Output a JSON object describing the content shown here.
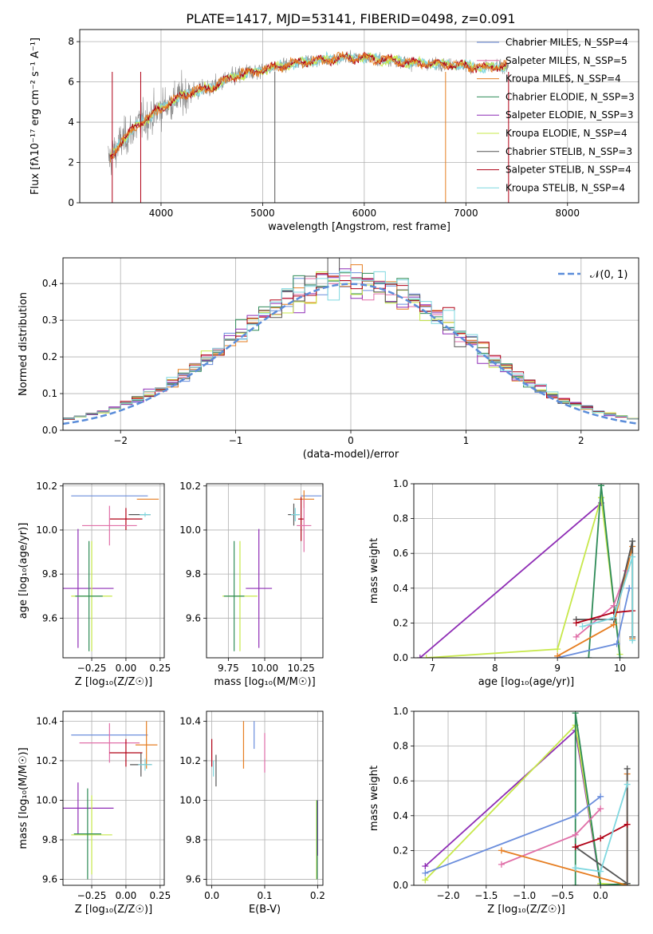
{
  "figure": {
    "title": "PLATE=1417, MJD=53141, FIBERID=0498, z=0.091"
  },
  "colors": {
    "chabrier_miles": "#6a8ddc",
    "salpeter_miles": "#e06fa8",
    "kroupa_miles": "#e67e22",
    "chabrier_elodie": "#2e8b57",
    "salpeter_elodie": "#8e2cb5",
    "kroupa_elodie": "#c7e84a",
    "chabrier_stelib": "#555555",
    "salpeter_stelib": "#b00015",
    "kroupa_stelib": "#7fd8e0",
    "data": "#888888",
    "normal": "#5b8dd9"
  },
  "chart_data": [
    {
      "id": "spectrum",
      "type": "line",
      "xlabel": "wavelength [Angstrom, rest frame]",
      "ylabel": "Flux [fλ10⁻¹⁷ erg cm⁻² s⁻¹ A⁻¹]",
      "xlim": [
        3200,
        8700
      ],
      "ylim": [
        0,
        8.6
      ],
      "xticks": [
        4000,
        5000,
        6000,
        7000,
        8000
      ],
      "yticks": [
        0,
        2,
        4,
        6,
        8
      ],
      "legend_position": "right",
      "continuum": {
        "x": [
          3500,
          3600,
          3700,
          3800,
          3900,
          4000,
          4100,
          4200,
          4300,
          4400,
          4500,
          4600,
          4800,
          5000,
          5200,
          5400,
          5600,
          5800,
          6000,
          6200,
          6400,
          6600,
          6800,
          7000,
          7200,
          7400
        ],
        "y": [
          2.2,
          3.0,
          3.5,
          4.0,
          4.3,
          4.7,
          5.0,
          5.3,
          5.5,
          5.6,
          5.7,
          6.0,
          6.4,
          6.6,
          6.8,
          7.0,
          7.1,
          7.2,
          7.2,
          7.1,
          7.0,
          6.9,
          6.9,
          6.8,
          6.7,
          6.8
        ]
      },
      "legend": [
        {
          "label": "Chabrier MILES, N_SSP=4",
          "color": "#6a8ddc"
        },
        {
          "label": "Salpeter MILES, N_SSP=5",
          "color": "#e06fa8"
        },
        {
          "label": "Kroupa MILES, N_SSP=4",
          "color": "#e67e22"
        },
        {
          "label": "Chabrier ELODIE, N_SSP=3",
          "color": "#2e8b57"
        },
        {
          "label": "Salpeter ELODIE, N_SSP=3",
          "color": "#8e2cb5"
        },
        {
          "label": "Kroupa ELODIE, N_SSP=4",
          "color": "#c7e84a"
        },
        {
          "label": "Chabrier STELIB, N_SSP=3",
          "color": "#555555"
        },
        {
          "label": "Salpeter STELIB, N_SSP=4",
          "color": "#b00015"
        },
        {
          "label": "Kroupa STELIB, N_SSP=4",
          "color": "#7fd8e0"
        }
      ]
    },
    {
      "id": "residuals",
      "type": "step",
      "xlabel": "(data-model)/error",
      "ylabel": "Normed distribution",
      "xlim": [
        -2.5,
        2.5
      ],
      "ylim": [
        0,
        0.47
      ],
      "xticks": [
        -2,
        -1,
        0,
        1,
        2
      ],
      "yticks": [
        0.0,
        0.1,
        0.2,
        0.3,
        0.4
      ],
      "grid": true,
      "legend": {
        "label": "𝒩(0, 1)",
        "position": "top-right"
      },
      "bins": {
        "start": -2.5,
        "width": 0.1,
        "count": 50
      }
    },
    {
      "id": "age_Z",
      "type": "errorbar",
      "xlabel": "Z [log₁₀(Z/Z☉)]",
      "ylabel": "age  [log₁₀(age/yr)]",
      "xlim": [
        -0.46,
        0.28
      ],
      "ylim": [
        9.42,
        10.21
      ],
      "xticks": [
        -0.25,
        0.0,
        0.25
      ],
      "yticks": [
        9.6,
        9.8,
        10.0,
        10.2
      ],
      "points": [
        {
          "m": "chabrier_miles",
          "x": -0.12,
          "y": 10.155,
          "xerr": 0.28,
          "yerr": 0.0
        },
        {
          "m": "kroupa_miles",
          "x": 0.16,
          "y": 10.14,
          "xerr": 0.08,
          "yerr": 0.0
        },
        {
          "m": "chabrier_stelib",
          "x": 0.1,
          "y": 10.07,
          "xerr": 0.08,
          "yerr": 0.0
        },
        {
          "m": "kroupa_stelib",
          "x": 0.14,
          "y": 10.07,
          "xerr": 0.04,
          "yerr": 0.01
        },
        {
          "m": "salpeter_stelib",
          "x": 0.0,
          "y": 10.05,
          "xerr": 0.12,
          "yerr": 0.05
        },
        {
          "m": "salpeter_miles",
          "x": -0.12,
          "y": 10.02,
          "xerr": 0.2,
          "yerr": 0.09
        },
        {
          "m": "salpeter_elodie",
          "x": -0.35,
          "y": 9.735,
          "xerr": 0.26,
          "yerr": 0.27
        },
        {
          "m": "kroupa_elodie",
          "x": -0.25,
          "y": 9.7,
          "xerr": 0.15,
          "yerr": 0.25
        },
        {
          "m": "chabrier_elodie",
          "x": -0.27,
          "y": 9.7,
          "xerr": 0.1,
          "yerr": 0.25
        }
      ]
    },
    {
      "id": "age_mass",
      "type": "errorbar",
      "xlabel": "mass [log₁₀(M/M☉)]",
      "ylabel": "",
      "xlim": [
        9.6,
        10.4
      ],
      "ylim": [
        9.42,
        10.21
      ],
      "xticks": [
        9.75,
        10.0,
        10.25
      ],
      "yticks": [
        9.6,
        9.8,
        10.0,
        10.2
      ],
      "points": [
        {
          "m": "chabrier_miles",
          "x": 10.32,
          "y": 10.155,
          "xerr": 0.07,
          "yerr": 0.0
        },
        {
          "m": "kroupa_miles",
          "x": 10.27,
          "y": 10.14,
          "xerr": 0.07,
          "yerr": 0.04
        },
        {
          "m": "chabrier_stelib",
          "x": 10.2,
          "y": 10.07,
          "xerr": 0.04,
          "yerr": 0.05
        },
        {
          "m": "kroupa_stelib",
          "x": 10.21,
          "y": 10.07,
          "xerr": 0.03,
          "yerr": 0.03
        },
        {
          "m": "salpeter_stelib",
          "x": 10.25,
          "y": 10.05,
          "xerr": 0.02,
          "yerr": 0.1
        },
        {
          "m": "salpeter_miles",
          "x": 10.27,
          "y": 10.02,
          "xerr": 0.05,
          "yerr": 0.12
        },
        {
          "m": "salpeter_elodie",
          "x": 9.96,
          "y": 9.735,
          "xerr": 0.09,
          "yerr": 0.27
        },
        {
          "m": "kroupa_elodie",
          "x": 9.83,
          "y": 9.7,
          "xerr": 0.12,
          "yerr": 0.25
        },
        {
          "m": "chabrier_elodie",
          "x": 9.79,
          "y": 9.7,
          "xerr": 0.07,
          "yerr": 0.25
        }
      ]
    },
    {
      "id": "weight_age",
      "type": "line",
      "xlabel": "age  [log₁₀(age/yr)]",
      "ylabel": "mass weight",
      "xlim": [
        6.7,
        10.3
      ],
      "ylim": [
        0,
        1.0
      ],
      "xticks": [
        7,
        8,
        9,
        10
      ],
      "yticks": [
        0.0,
        0.2,
        0.4,
        0.6,
        0.8,
        1.0
      ],
      "grid": true,
      "series": [
        {
          "m": "salpeter_elodie",
          "x": [
            6.8,
            9.7
          ],
          "y": [
            0.0,
            0.89
          ]
        },
        {
          "m": "kroupa_elodie",
          "x": [
            6.9,
            9.0,
            9.7,
            10.0,
            9.7
          ],
          "y": [
            0.0,
            0.05,
            0.92,
            0.02,
            0.92
          ]
        },
        {
          "m": "chabrier_elodie",
          "x": [
            9.5,
            9.7,
            10.0,
            9.7
          ],
          "y": [
            0.0,
            0.99,
            0.0,
            0.99
          ]
        },
        {
          "m": "chabrier_miles",
          "x": [
            9.0,
            9.95,
            10.15
          ],
          "y": [
            0.0,
            0.08,
            0.4
          ]
        },
        {
          "m": "kroupa_miles",
          "x": [
            9.0,
            9.9,
            10.2,
            10.2
          ],
          "y": [
            0.01,
            0.19,
            0.64,
            0.11
          ]
        },
        {
          "m": "salpeter_miles",
          "x": [
            9.3,
            9.9,
            10.1
          ],
          "y": [
            0.12,
            0.3,
            0.5
          ]
        },
        {
          "m": "chabrier_stelib",
          "x": [
            9.3,
            9.9,
            10.2,
            10.2
          ],
          "y": [
            0.22,
            0.22,
            0.67,
            0.12
          ]
        },
        {
          "m": "salpeter_stelib",
          "x": [
            9.3,
            9.9,
            10.2
          ],
          "y": [
            0.2,
            0.26,
            0.27
          ]
        },
        {
          "m": "kroupa_stelib",
          "x": [
            9.4,
            9.9,
            10.2,
            10.2
          ],
          "y": [
            0.18,
            0.23,
            0.58,
            0.1
          ]
        }
      ]
    },
    {
      "id": "mass_Z",
      "type": "errorbar",
      "xlabel": "Z [log₁₀(Z/Z☉)]",
      "ylabel": "mass [log₁₀(M/M☉)]",
      "xlim": [
        -0.46,
        0.28
      ],
      "ylim": [
        9.57,
        10.45
      ],
      "xticks": [
        -0.25,
        0.0,
        0.25
      ],
      "yticks": [
        9.6,
        9.8,
        10.0,
        10.2,
        10.4
      ],
      "points": [
        {
          "m": "chabrier_miles",
          "x": -0.12,
          "y": 10.33,
          "xerr": 0.28,
          "yerr": 0.0
        },
        {
          "m": "kroupa_miles",
          "x": 0.15,
          "y": 10.28,
          "xerr": 0.08,
          "yerr": 0.12
        },
        {
          "m": "salpeter_miles",
          "x": -0.12,
          "y": 10.29,
          "xerr": 0.22,
          "yerr": 0.1
        },
        {
          "m": "salpeter_stelib",
          "x": 0.0,
          "y": 10.24,
          "xerr": 0.12,
          "yerr": 0.07
        },
        {
          "m": "chabrier_stelib",
          "x": 0.11,
          "y": 10.18,
          "xerr": 0.08,
          "yerr": 0.06
        },
        {
          "m": "kroupa_stelib",
          "x": 0.14,
          "y": 10.18,
          "xerr": 0.05,
          "yerr": 0.03
        },
        {
          "m": "salpeter_elodie",
          "x": -0.35,
          "y": 9.96,
          "xerr": 0.26,
          "yerr": 0.13
        },
        {
          "m": "kroupa_elodie",
          "x": -0.25,
          "y": 9.825,
          "xerr": 0.15,
          "yerr": 0.2
        },
        {
          "m": "chabrier_elodie",
          "x": -0.28,
          "y": 9.83,
          "xerr": 0.1,
          "yerr": 0.23
        }
      ]
    },
    {
      "id": "mass_ebv",
      "type": "errorbar",
      "xlabel": "E(B-V)",
      "ylabel": "",
      "xlim": [
        -0.01,
        0.21
      ],
      "ylim": [
        9.57,
        10.45
      ],
      "xticks": [
        0.0,
        0.1,
        0.2
      ],
      "yticks": [
        9.6,
        9.8,
        10.0,
        10.2,
        10.4
      ],
      "points": [
        {
          "m": "salpeter_stelib",
          "x": 0.0,
          "y": 10.24,
          "xerr": 0.0,
          "yerr": 0.07
        },
        {
          "m": "kroupa_stelib",
          "x": 0.003,
          "y": 10.16,
          "xerr": 0.0,
          "yerr": 0.04
        },
        {
          "m": "chabrier_stelib",
          "x": 0.008,
          "y": 10.15,
          "xerr": 0.0,
          "yerr": 0.08
        },
        {
          "m": "kroupa_miles",
          "x": 0.06,
          "y": 10.28,
          "xerr": 0.0,
          "yerr": 0.12
        },
        {
          "m": "chabrier_miles",
          "x": 0.08,
          "y": 10.33,
          "xerr": 0.0,
          "yerr": 0.07
        },
        {
          "m": "salpeter_miles",
          "x": 0.1,
          "y": 10.24,
          "xerr": 0.0,
          "yerr": 0.1
        },
        {
          "m": "salpeter_elodie",
          "x": 0.2,
          "y": 9.86,
          "xerr": 0.0,
          "yerr": 0.14
        },
        {
          "m": "kroupa_elodie",
          "x": 0.198,
          "y": 9.8,
          "xerr": 0.0,
          "yerr": 0.2
        },
        {
          "m": "chabrier_elodie",
          "x": 0.199,
          "y": 9.8,
          "xerr": 0.0,
          "yerr": 0.2
        }
      ]
    },
    {
      "id": "weight_Z",
      "type": "line",
      "xlabel": "Z [log₁₀(Z/Z☉)]",
      "ylabel": "mass weight",
      "xlim": [
        -2.45,
        0.5
      ],
      "ylim": [
        0,
        1.0
      ],
      "xticks": [
        -2.0,
        -1.5,
        -1.0,
        -0.5,
        0.0
      ],
      "yticks": [
        0.0,
        0.2,
        0.4,
        0.6,
        0.8,
        1.0
      ],
      "grid": true,
      "series": [
        {
          "m": "salpeter_elodie",
          "x": [
            -2.3,
            -0.33,
            0.0
          ],
          "y": [
            0.11,
            0.89,
            0.0
          ]
        },
        {
          "m": "kroupa_elodie",
          "x": [
            -2.3,
            -0.33,
            0.0,
            0.35
          ],
          "y": [
            0.03,
            0.92,
            0.01,
            0.0
          ]
        },
        {
          "m": "chabrier_elodie",
          "x": [
            -0.33,
            -0.33,
            0.0,
            0.35
          ],
          "y": [
            0.0,
            0.99,
            0.0,
            0.01
          ]
        },
        {
          "m": "chabrier_miles",
          "x": [
            -2.3,
            -0.33,
            0.0
          ],
          "y": [
            0.07,
            0.4,
            0.51
          ]
        },
        {
          "m": "salpeter_miles",
          "x": [
            -1.3,
            -0.33,
            0.0
          ],
          "y": [
            0.12,
            0.29,
            0.44
          ]
        },
        {
          "m": "kroupa_miles",
          "x": [
            -1.3,
            0.35,
            0.35
          ],
          "y": [
            0.2,
            0.0,
            0.64
          ]
        },
        {
          "m": "chabrier_stelib",
          "x": [
            -0.33,
            0.35,
            0.35
          ],
          "y": [
            0.22,
            0.01,
            0.67
          ]
        },
        {
          "m": "salpeter_stelib",
          "x": [
            -0.33,
            0.0,
            0.35
          ],
          "y": [
            0.22,
            0.27,
            0.35
          ]
        },
        {
          "m": "kroupa_stelib",
          "x": [
            -0.33,
            0.0,
            0.35
          ],
          "y": [
            0.1,
            0.08,
            0.58
          ]
        }
      ]
    }
  ]
}
